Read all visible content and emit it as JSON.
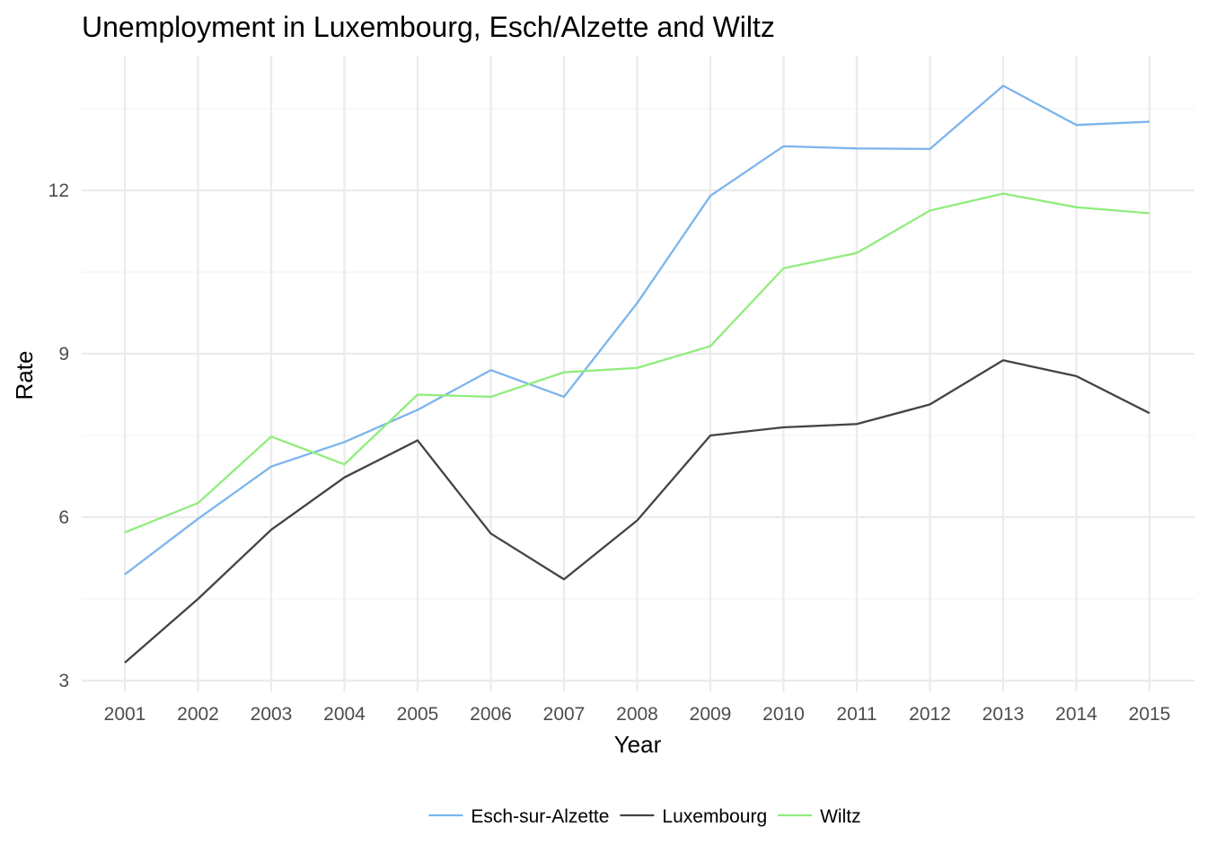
{
  "chart_data": {
    "type": "line",
    "title": "Unemployment in Luxembourg, Esch/Alzette and Wiltz",
    "xlabel": "Year",
    "ylabel": "Rate",
    "x": [
      2001,
      2002,
      2003,
      2004,
      2005,
      2006,
      2007,
      2008,
      2009,
      2010,
      2011,
      2012,
      2013,
      2014,
      2015
    ],
    "x_tick_labels": [
      "2001",
      "2002",
      "2003",
      "2004",
      "2005",
      "2006",
      "2007",
      "2008",
      "2009",
      "2010",
      "2011",
      "2012",
      "2013",
      "2014",
      "2015"
    ],
    "y_ticks": [
      3,
      6,
      9,
      12
    ],
    "y_tick_labels": [
      "3",
      "6",
      "9",
      "12"
    ],
    "ylim": [
      2.95,
      14.4
    ],
    "grid": true,
    "legend_position": "bottom",
    "series": [
      {
        "name": "Esch-sur-Alzette",
        "color": "#7cb5ec",
        "values": [
          4.95,
          5.97,
          6.93,
          7.38,
          7.97,
          8.7,
          8.21,
          9.93,
          11.9,
          12.81,
          12.77,
          12.76,
          13.92,
          13.2,
          13.26
        ]
      },
      {
        "name": "Luxembourg",
        "color": "#434348",
        "values": [
          3.33,
          4.5,
          5.77,
          6.73,
          7.41,
          5.7,
          4.86,
          5.94,
          7.5,
          7.65,
          7.71,
          8.07,
          8.88,
          8.59,
          7.91
        ]
      },
      {
        "name": "Wiltz",
        "color": "#90ed7d",
        "values": [
          5.72,
          6.26,
          7.48,
          6.97,
          8.25,
          8.21,
          8.66,
          8.74,
          9.14,
          10.57,
          10.85,
          11.63,
          11.94,
          11.69,
          11.58
        ]
      }
    ]
  }
}
